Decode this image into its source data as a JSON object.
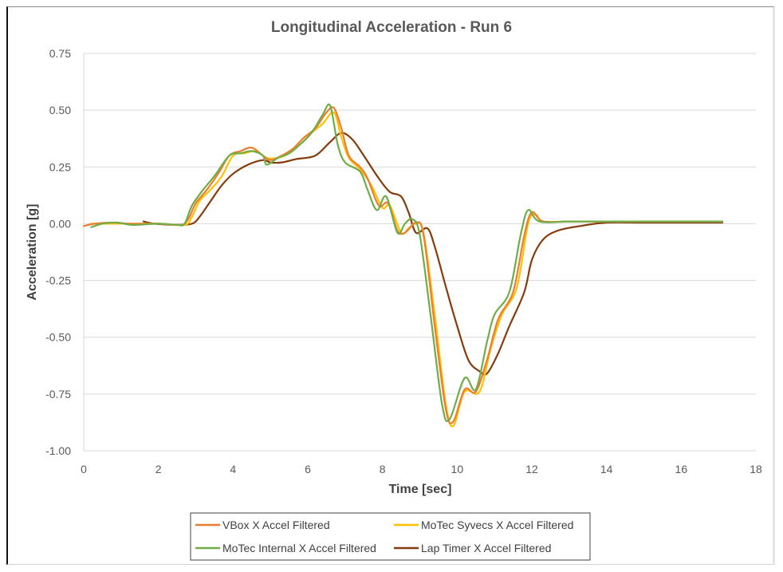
{
  "chart_data": {
    "type": "line",
    "title": "Longitudinal Acceleration - Run 6",
    "xlabel": "Time [sec]",
    "ylabel": "Acceleration [g]",
    "xlim": [
      0,
      18
    ],
    "ylim": [
      -1.0,
      0.75
    ],
    "x_ticks": [
      0,
      2,
      4,
      6,
      8,
      10,
      12,
      14,
      16,
      18
    ],
    "y_ticks": [
      0.75,
      0.5,
      0.25,
      0.0,
      -0.25,
      -0.5,
      -0.75,
      -1.0
    ],
    "x_tick_labels": [
      "0",
      "2",
      "4",
      "6",
      "8",
      "10",
      "12",
      "14",
      "16",
      "18"
    ],
    "y_tick_labels": [
      "0.75",
      "0.50",
      "0.25",
      "0.00",
      "-0.25",
      "-0.50",
      "-0.75",
      "-1.00"
    ],
    "grid": {
      "horizontal": true,
      "vertical": false
    },
    "legend_position": "bottom",
    "series": [
      {
        "name": "VBox X Accel Filtered",
        "color": "#ED7D31",
        "points": [
          [
            0.0,
            -0.01
          ],
          [
            0.3,
            0.0
          ],
          [
            0.8,
            0.005
          ],
          [
            1.2,
            0.0
          ],
          [
            2.0,
            0.0
          ],
          [
            2.6,
            -0.005
          ],
          [
            2.8,
            0.02
          ],
          [
            3.0,
            0.09
          ],
          [
            3.3,
            0.15
          ],
          [
            3.6,
            0.22
          ],
          [
            3.9,
            0.3
          ],
          [
            4.2,
            0.32
          ],
          [
            4.5,
            0.335
          ],
          [
            4.8,
            0.3
          ],
          [
            5.0,
            0.28
          ],
          [
            5.3,
            0.3
          ],
          [
            5.6,
            0.33
          ],
          [
            5.9,
            0.38
          ],
          [
            6.2,
            0.42
          ],
          [
            6.5,
            0.49
          ],
          [
            6.7,
            0.51
          ],
          [
            6.9,
            0.42
          ],
          [
            7.1,
            0.3
          ],
          [
            7.4,
            0.25
          ],
          [
            7.6,
            0.2
          ],
          [
            7.9,
            0.08
          ],
          [
            8.15,
            0.09
          ],
          [
            8.4,
            -0.03
          ],
          [
            8.6,
            -0.04
          ],
          [
            8.9,
            0.005
          ],
          [
            9.1,
            -0.05
          ],
          [
            9.4,
            -0.45
          ],
          [
            9.7,
            -0.82
          ],
          [
            9.9,
            -0.87
          ],
          [
            10.2,
            -0.73
          ],
          [
            10.5,
            -0.74
          ],
          [
            10.8,
            -0.6
          ],
          [
            11.1,
            -0.42
          ],
          [
            11.5,
            -0.3
          ],
          [
            11.8,
            -0.05
          ],
          [
            12.0,
            0.05
          ],
          [
            12.3,
            0.01
          ],
          [
            13.0,
            0.01
          ],
          [
            14.0,
            0.01
          ],
          [
            15.0,
            0.01
          ],
          [
            16.0,
            0.01
          ],
          [
            17.1,
            0.01
          ]
        ]
      },
      {
        "name": "MoTec Syvecs X Accel Filtered",
        "color": "#FFC000",
        "points": [
          [
            0.2,
            0.0
          ],
          [
            0.8,
            0.0
          ],
          [
            1.5,
            0.0
          ],
          [
            2.0,
            0.0
          ],
          [
            2.7,
            -0.005
          ],
          [
            2.9,
            0.03
          ],
          [
            3.1,
            0.1
          ],
          [
            3.4,
            0.15
          ],
          [
            3.7,
            0.21
          ],
          [
            4.0,
            0.3
          ],
          [
            4.3,
            0.31
          ],
          [
            4.6,
            0.32
          ],
          [
            4.9,
            0.29
          ],
          [
            5.2,
            0.29
          ],
          [
            5.5,
            0.31
          ],
          [
            5.8,
            0.35
          ],
          [
            6.1,
            0.4
          ],
          [
            6.4,
            0.44
          ],
          [
            6.7,
            0.49
          ],
          [
            6.9,
            0.38
          ],
          [
            7.1,
            0.29
          ],
          [
            7.4,
            0.24
          ],
          [
            7.7,
            0.17
          ],
          [
            8.0,
            0.07
          ],
          [
            8.2,
            0.08
          ],
          [
            8.5,
            -0.04
          ],
          [
            8.7,
            -0.02
          ],
          [
            8.9,
            0.0
          ],
          [
            9.1,
            -0.04
          ],
          [
            9.4,
            -0.4
          ],
          [
            9.7,
            -0.8
          ],
          [
            9.9,
            -0.89
          ],
          [
            10.2,
            -0.74
          ],
          [
            10.6,
            -0.74
          ],
          [
            10.9,
            -0.55
          ],
          [
            11.2,
            -0.4
          ],
          [
            11.6,
            -0.28
          ],
          [
            11.9,
            0.0
          ],
          [
            12.1,
            0.04
          ],
          [
            12.3,
            0.01
          ],
          [
            13.0,
            0.01
          ],
          [
            14.0,
            0.01
          ],
          [
            15.0,
            0.01
          ],
          [
            16.0,
            0.01
          ],
          [
            17.1,
            0.01
          ]
        ]
      },
      {
        "name": "MoTec Internal X Accel Filtered",
        "color": "#70AD47",
        "points": [
          [
            0.2,
            -0.015
          ],
          [
            0.5,
            0.0
          ],
          [
            0.9,
            0.005
          ],
          [
            1.3,
            -0.005
          ],
          [
            2.0,
            0.0
          ],
          [
            2.5,
            -0.005
          ],
          [
            2.7,
            0.0
          ],
          [
            2.9,
            0.08
          ],
          [
            3.2,
            0.15
          ],
          [
            3.5,
            0.21
          ],
          [
            3.9,
            0.3
          ],
          [
            4.2,
            0.31
          ],
          [
            4.5,
            0.32
          ],
          [
            4.8,
            0.3
          ],
          [
            4.9,
            0.26
          ],
          [
            5.2,
            0.29
          ],
          [
            5.5,
            0.31
          ],
          [
            5.8,
            0.35
          ],
          [
            6.1,
            0.4
          ],
          [
            6.4,
            0.48
          ],
          [
            6.6,
            0.52
          ],
          [
            6.8,
            0.35
          ],
          [
            7.0,
            0.27
          ],
          [
            7.4,
            0.23
          ],
          [
            7.6,
            0.15
          ],
          [
            7.85,
            0.06
          ],
          [
            8.1,
            0.12
          ],
          [
            8.4,
            -0.04
          ],
          [
            8.6,
            0.0
          ],
          [
            8.8,
            0.02
          ],
          [
            9.0,
            -0.05
          ],
          [
            9.3,
            -0.42
          ],
          [
            9.6,
            -0.8
          ],
          [
            9.8,
            -0.86
          ],
          [
            10.2,
            -0.68
          ],
          [
            10.5,
            -0.73
          ],
          [
            10.8,
            -0.52
          ],
          [
            11.0,
            -0.4
          ],
          [
            11.4,
            -0.3
          ],
          [
            11.7,
            -0.05
          ],
          [
            11.9,
            0.06
          ],
          [
            12.2,
            0.01
          ],
          [
            13.0,
            0.01
          ],
          [
            14.0,
            0.01
          ],
          [
            15.0,
            0.01
          ],
          [
            16.0,
            0.01
          ],
          [
            17.1,
            0.01
          ]
        ]
      },
      {
        "name": "Lap Timer X Accel Filtered",
        "color": "#843C0C",
        "points": [
          [
            1.6,
            0.01
          ],
          [
            1.9,
            0.0
          ],
          [
            2.5,
            -0.005
          ],
          [
            2.9,
            0.0
          ],
          [
            3.1,
            0.03
          ],
          [
            3.4,
            0.1
          ],
          [
            3.7,
            0.17
          ],
          [
            4.0,
            0.22
          ],
          [
            4.4,
            0.26
          ],
          [
            4.8,
            0.28
          ],
          [
            5.0,
            0.27
          ],
          [
            5.3,
            0.27
          ],
          [
            5.7,
            0.285
          ],
          [
            6.2,
            0.3
          ],
          [
            6.6,
            0.36
          ],
          [
            6.9,
            0.4
          ],
          [
            7.2,
            0.37
          ],
          [
            7.5,
            0.3
          ],
          [
            7.9,
            0.2
          ],
          [
            8.2,
            0.14
          ],
          [
            8.5,
            0.12
          ],
          [
            8.7,
            0.05
          ],
          [
            8.9,
            -0.04
          ],
          [
            9.2,
            -0.02
          ],
          [
            9.4,
            -0.1
          ],
          [
            9.7,
            -0.28
          ],
          [
            10.0,
            -0.45
          ],
          [
            10.3,
            -0.6
          ],
          [
            10.6,
            -0.65
          ],
          [
            10.8,
            -0.66
          ],
          [
            11.1,
            -0.57
          ],
          [
            11.4,
            -0.45
          ],
          [
            11.8,
            -0.3
          ],
          [
            12.0,
            -0.16
          ],
          [
            12.3,
            -0.07
          ],
          [
            12.7,
            -0.03
          ],
          [
            13.3,
            -0.01
          ],
          [
            14.0,
            0.005
          ],
          [
            15.0,
            0.005
          ],
          [
            16.0,
            0.005
          ],
          [
            17.1,
            0.005
          ]
        ]
      }
    ]
  },
  "legend": {
    "items": [
      {
        "label": "VBox X Accel Filtered",
        "color": "#ED7D31"
      },
      {
        "label": "MoTec Syvecs X Accel Filtered",
        "color": "#FFC000"
      },
      {
        "label": "MoTec Internal X Accel Filtered",
        "color": "#70AD47"
      },
      {
        "label": "Lap Timer X Accel Filtered",
        "color": "#843C0C"
      }
    ]
  }
}
